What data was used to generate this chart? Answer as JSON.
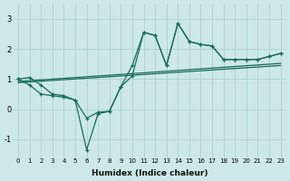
{
  "xlabel": "Humidex (Indice chaleur)",
  "bg_color": "#cce8e8",
  "grid_color": "#a8cccc",
  "line_color": "#1a6b5a",
  "xlim": [
    -0.5,
    23.5
  ],
  "ylim": [
    -1.6,
    3.5
  ],
  "xticks": [
    0,
    1,
    2,
    3,
    4,
    5,
    6,
    7,
    8,
    9,
    10,
    11,
    12,
    13,
    14,
    15,
    16,
    17,
    18,
    19,
    20,
    21,
    22,
    23
  ],
  "yticks": [
    -1,
    0,
    1,
    2,
    3
  ],
  "curve1_x": [
    0,
    1,
    2,
    3,
    4,
    5,
    6,
    7,
    8,
    9,
    10,
    11,
    12,
    13,
    14,
    15,
    16,
    17,
    18,
    19,
    20,
    21,
    22,
    23
  ],
  "curve1_y": [
    1.0,
    1.05,
    0.8,
    0.5,
    0.45,
    0.3,
    -0.3,
    -0.1,
    -0.07,
    0.75,
    1.45,
    2.55,
    2.45,
    1.45,
    2.85,
    2.25,
    2.15,
    2.1,
    1.65,
    1.65,
    1.65,
    1.65,
    1.75,
    1.85
  ],
  "curve2_x": [
    0,
    1,
    2,
    3,
    4,
    5,
    6,
    7,
    8,
    9,
    10,
    11,
    12,
    13,
    14,
    15,
    16,
    17,
    18,
    19,
    20,
    21,
    22,
    23
  ],
  "curve2_y": [
    1.0,
    0.8,
    0.5,
    0.45,
    0.4,
    0.3,
    -1.35,
    -0.15,
    -0.07,
    0.75,
    1.1,
    2.55,
    2.45,
    1.45,
    2.85,
    2.25,
    2.15,
    2.1,
    1.65,
    1.65,
    1.65,
    1.65,
    1.75,
    1.85
  ],
  "line1_x": [
    0,
    23
  ],
  "line1_y": [
    0.92,
    1.52
  ],
  "line2_x": [
    0,
    23
  ],
  "line2_y": [
    0.88,
    1.45
  ]
}
